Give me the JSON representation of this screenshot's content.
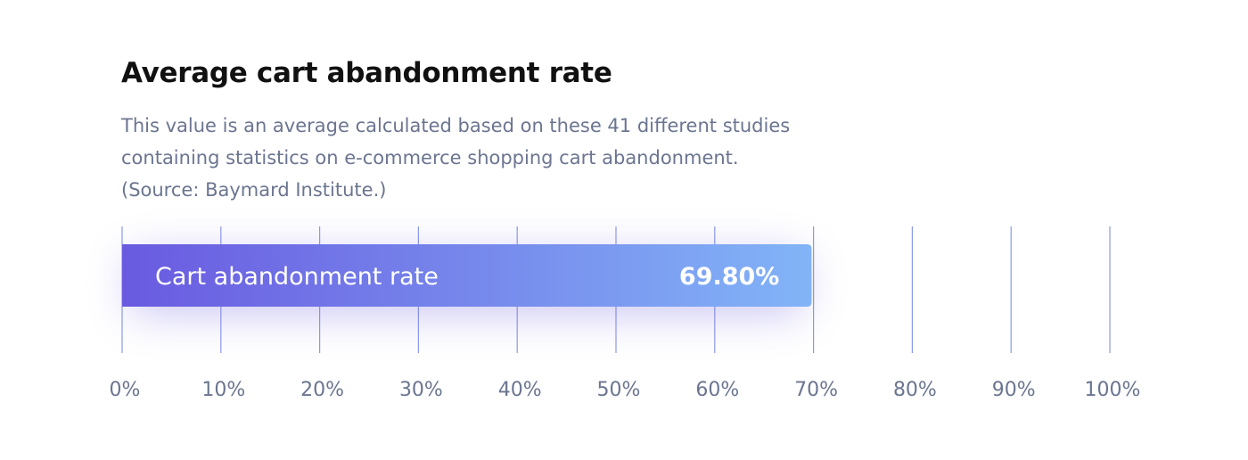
{
  "header": {
    "title": "Average cart abandonment rate",
    "description_lines": [
      "This value is an average calculated based on these 41 different studies",
      "containing statistics on e-commerce shopping cart abandonment.",
      "(Source: Baymard Institute.)"
    ]
  },
  "colors": {
    "bar_start": "#6a5ae0",
    "bar_end": "#82b4f7",
    "gridline": "#8a9ae8",
    "text_muted": "#6b7590",
    "shadow": "#7468e0"
  },
  "chart_data": {
    "type": "bar",
    "orientation": "horizontal",
    "categories": [
      "Cart abandonment rate"
    ],
    "values": [
      69.8
    ],
    "value_labels": [
      "69.80%"
    ],
    "xlim": [
      0,
      100
    ],
    "xticks": [
      0,
      10,
      20,
      30,
      40,
      50,
      60,
      70,
      80,
      90,
      100
    ],
    "xtick_labels": [
      "0%",
      "10%",
      "20%",
      "30%",
      "40%",
      "50%",
      "60%",
      "70%",
      "80%",
      "90%",
      "100%"
    ],
    "grid": true,
    "title": "Average cart abandonment rate",
    "xlabel": "",
    "ylabel": ""
  }
}
